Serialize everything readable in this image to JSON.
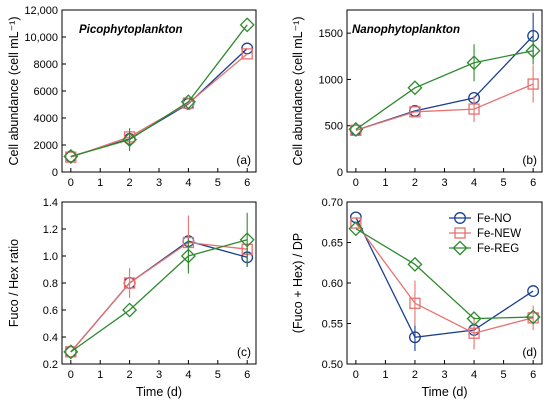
{
  "colors": {
    "Fe-NO": "#1a3f8f",
    "Fe-NEW": "#e8706e",
    "Fe-REG": "#2e8b2e"
  },
  "legend": [
    "Fe-NO",
    "Fe-NEW",
    "Fe-REG"
  ],
  "chart_data": [
    {
      "id": "a",
      "type": "line",
      "title": "Picophytoplankton",
      "ylabel": "Cell abundance (cell mL⁻¹)",
      "xlabel": "",
      "panel_tag": "(a)",
      "xlim": [
        -0.3,
        6.3
      ],
      "ylim": [
        0,
        12000
      ],
      "xticks": [
        0,
        1,
        2,
        3,
        4,
        5,
        6
      ],
      "yticks": [
        0,
        2000,
        4000,
        6000,
        8000,
        10000,
        12000
      ],
      "ytick_labels": [
        "0",
        "2000",
        "4000",
        "6000",
        "8000",
        "10,000",
        "12,000"
      ],
      "x": [
        0,
        2,
        4,
        6
      ],
      "series": [
        {
          "name": "Fe-NO",
          "marker": "circle",
          "values": [
            1150,
            2450,
            5050,
            9150
          ],
          "err": [
            0,
            0,
            0,
            0
          ]
        },
        {
          "name": "Fe-NEW",
          "marker": "square",
          "values": [
            1100,
            2600,
            5100,
            8750
          ],
          "err": [
            0,
            0,
            0,
            0
          ]
        },
        {
          "name": "Fe-REG",
          "marker": "diamond",
          "values": [
            1150,
            2400,
            5200,
            10900
          ],
          "err": [
            0,
            850,
            0,
            0
          ]
        }
      ]
    },
    {
      "id": "b",
      "type": "line",
      "title": "Nanophytoplankton",
      "ylabel": "Cell abundance (cell mL⁻¹)",
      "xlabel": "",
      "panel_tag": "(b)",
      "xlim": [
        -0.3,
        6.3
      ],
      "ylim": [
        0,
        1750
      ],
      "xticks": [
        0,
        1,
        2,
        3,
        4,
        5,
        6
      ],
      "yticks": [
        0,
        500,
        1000,
        1500
      ],
      "ytick_labels": [
        "0",
        "500",
        "1000",
        "1500"
      ],
      "x": [
        0,
        2,
        4,
        6
      ],
      "series": [
        {
          "name": "Fe-NO",
          "marker": "circle",
          "values": [
            450,
            660,
            800,
            1470
          ],
          "err": [
            0,
            0,
            0,
            250
          ]
        },
        {
          "name": "Fe-NEW",
          "marker": "square",
          "values": [
            450,
            650,
            680,
            950
          ],
          "err": [
            0,
            0,
            140,
            200
          ]
        },
        {
          "name": "Fe-REG",
          "marker": "diamond",
          "values": [
            460,
            910,
            1180,
            1310
          ],
          "err": [
            0,
            0,
            200,
            150
          ]
        }
      ]
    },
    {
      "id": "c",
      "type": "line",
      "title": "",
      "ylabel": "Fuco / Hex ratio",
      "xlabel": "Time (d)",
      "panel_tag": "(c)",
      "xlim": [
        -0.3,
        6.3
      ],
      "ylim": [
        0.2,
        1.4
      ],
      "xticks": [
        0,
        1,
        2,
        3,
        4,
        5,
        6
      ],
      "yticks": [
        0.2,
        0.4,
        0.6,
        0.8,
        1.0,
        1.2,
        1.4
      ],
      "ytick_labels": [
        "0.2",
        "0.4",
        "0.6",
        "0.8",
        "1.0",
        "1.2",
        "1.4"
      ],
      "x": [
        0,
        2,
        4,
        6
      ],
      "series": [
        {
          "name": "Fe-NO",
          "marker": "circle",
          "values": [
            0.29,
            0.8,
            1.11,
            0.99
          ],
          "err": [
            0,
            0,
            0,
            0.07
          ]
        },
        {
          "name": "Fe-NEW",
          "marker": "square",
          "values": [
            0.29,
            0.8,
            1.1,
            1.05
          ],
          "err": [
            0,
            0.11,
            0.2,
            0
          ]
        },
        {
          "name": "Fe-REG",
          "marker": "diamond",
          "values": [
            0.29,
            0.6,
            1.0,
            1.12
          ],
          "err": [
            0,
            0,
            0.13,
            0.2
          ]
        }
      ]
    },
    {
      "id": "d",
      "type": "line",
      "title": "",
      "ylabel": "(Fuco + Hex) / DP",
      "xlabel": "Time (d)",
      "panel_tag": "(d)",
      "xlim": [
        -0.3,
        6.3
      ],
      "ylim": [
        0.5,
        0.7
      ],
      "xticks": [
        0,
        1,
        2,
        3,
        4,
        5,
        6
      ],
      "yticks": [
        0.5,
        0.55,
        0.6,
        0.65,
        0.7
      ],
      "ytick_labels": [
        "0.50",
        "0.55",
        "0.60",
        "0.65",
        "0.70"
      ],
      "x": [
        0,
        2,
        4,
        6
      ],
      "series": [
        {
          "name": "Fe-NO",
          "marker": "circle",
          "values": [
            0.681,
            0.533,
            0.542,
            0.59
          ],
          "err": [
            0,
            0.017,
            0,
            0
          ]
        },
        {
          "name": "Fe-NEW",
          "marker": "square",
          "values": [
            0.674,
            0.575,
            0.538,
            0.557
          ],
          "err": [
            0,
            0.028,
            0.02,
            0.015
          ]
        },
        {
          "name": "Fe-REG",
          "marker": "diamond",
          "values": [
            0.667,
            0.623,
            0.556,
            0.558
          ],
          "err": [
            0,
            0,
            0,
            0
          ]
        }
      ]
    }
  ]
}
